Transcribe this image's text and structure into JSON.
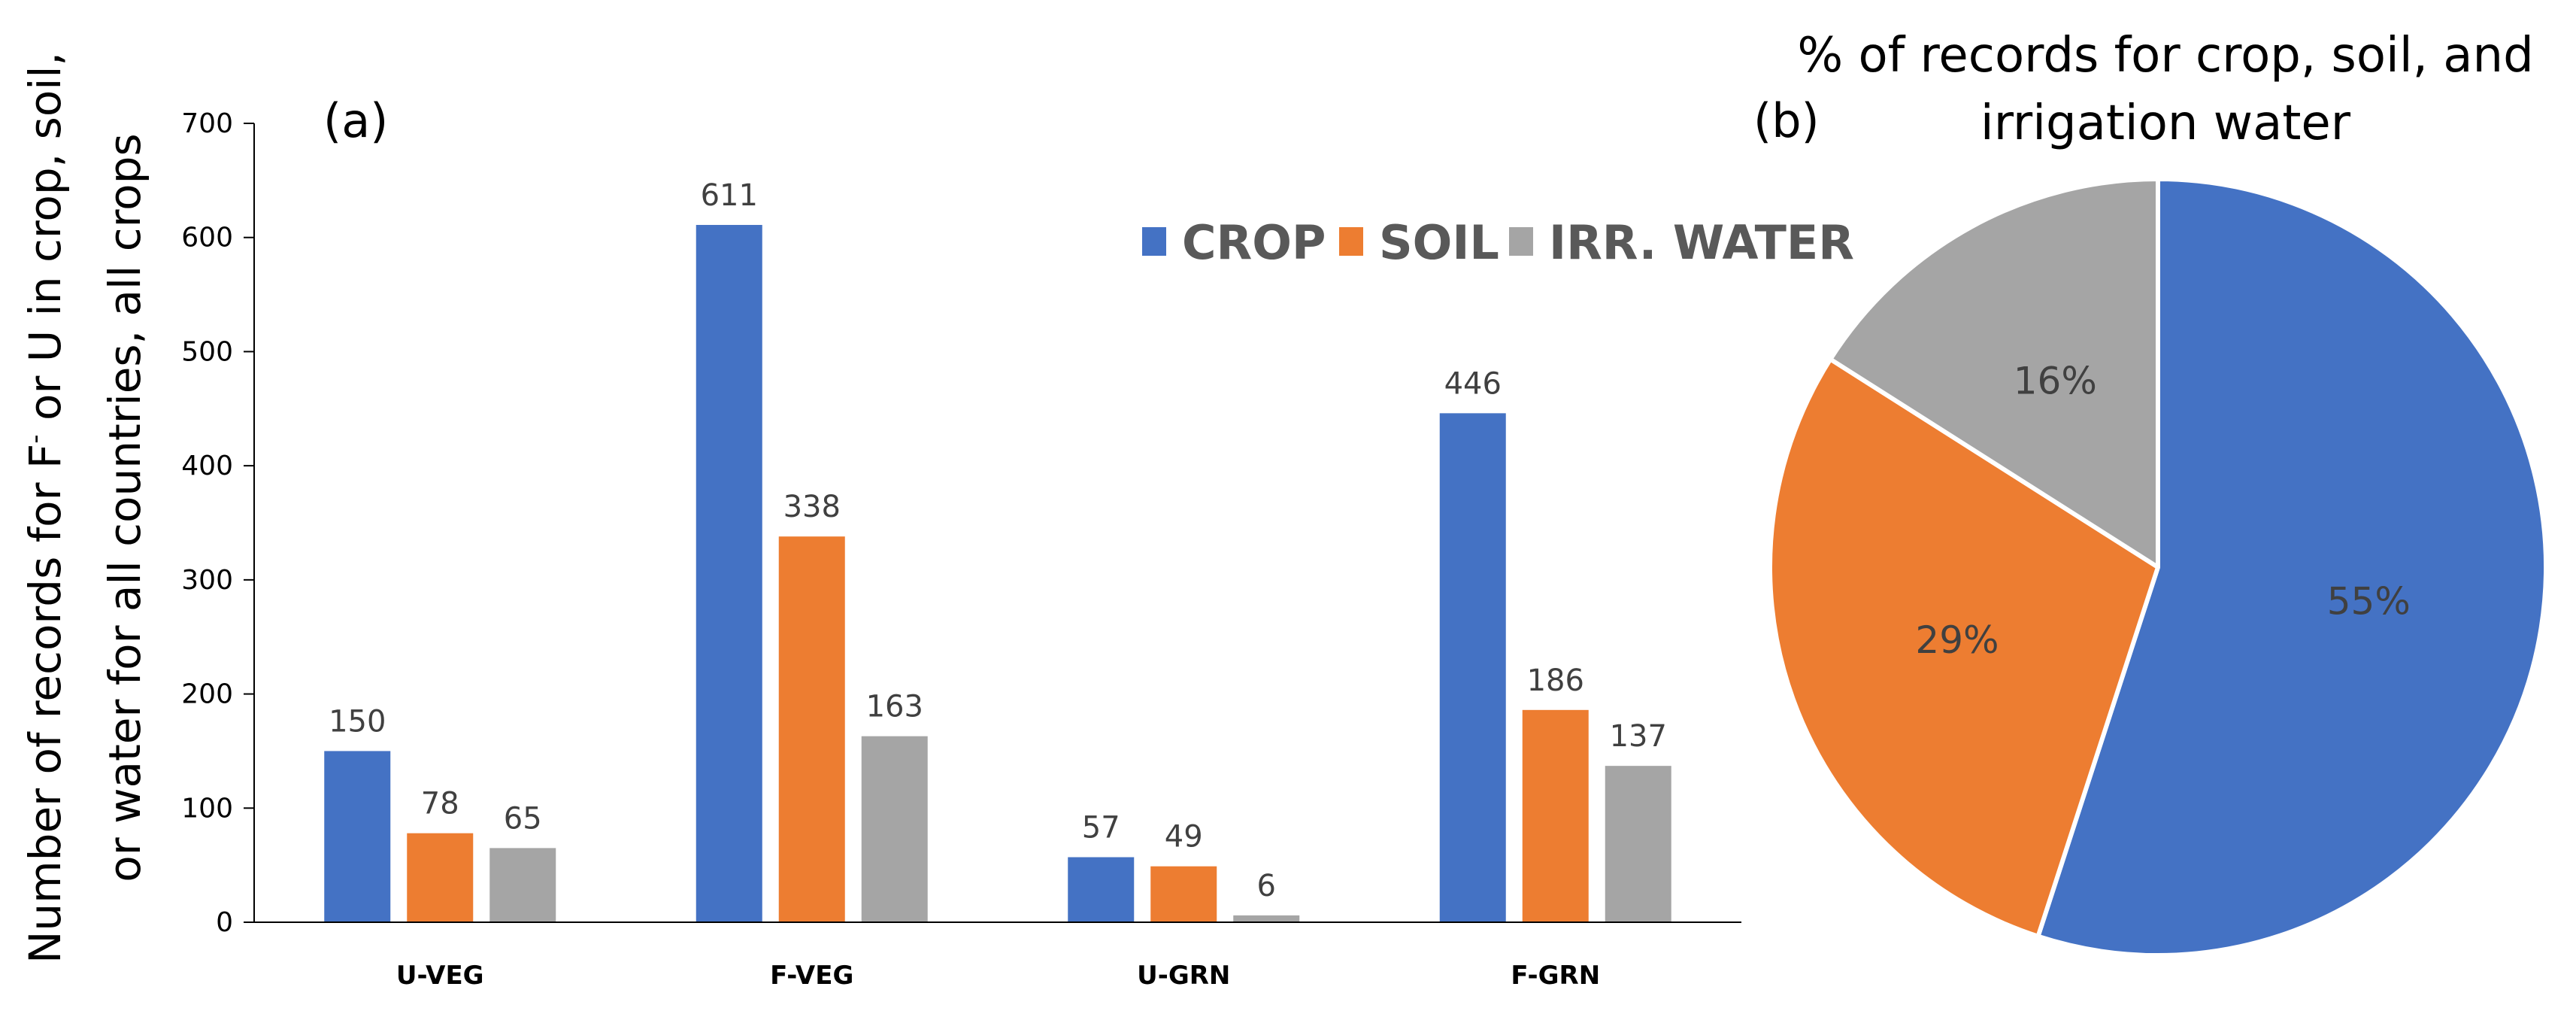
{
  "colors": {
    "crop": "#4472C4",
    "soil": "#ED7D31",
    "irr_water": "#A5A5A5"
  },
  "chart_data": [
    {
      "type": "bar",
      "panel_label": "(a)",
      "ylabel_line1": "Number of records for F",
      "ylabel_sup": "-",
      "ylabel_line1_end": " or U in crop, soil,",
      "ylabel_line2": "or water for all countries, all crops",
      "xlabel": "",
      "categories": [
        "U-VEG",
        "F-VEG",
        "U-GRN",
        "F-GRN"
      ],
      "ylim": [
        0,
        700
      ],
      "yticks": [
        "0",
        "100",
        "200",
        "300",
        "400",
        "500",
        "600",
        "700"
      ],
      "legend_position": "top-right",
      "series": [
        {
          "name": "CROP",
          "color_key": "crop",
          "values": [
            150,
            611,
            57,
            446
          ]
        },
        {
          "name": "SOIL",
          "color_key": "soil",
          "values": [
            78,
            338,
            49,
            186
          ]
        },
        {
          "name": "IRR. WATER",
          "color_key": "irr_water",
          "values": [
            65,
            163,
            6,
            137
          ]
        }
      ],
      "data_labels": true
    },
    {
      "type": "pie",
      "panel_label": "(b)",
      "title_line1": "% of records for crop, soil, and",
      "title_line2": "irrigation water",
      "slices": [
        {
          "name": "CROP",
          "color_key": "crop",
          "value": 55,
          "label": "55%"
        },
        {
          "name": "SOIL",
          "color_key": "soil",
          "value": 29,
          "label": "29%"
        },
        {
          "name": "IRR. WATER",
          "color_key": "irr_water",
          "value": 16,
          "label": "16%"
        }
      ]
    }
  ]
}
